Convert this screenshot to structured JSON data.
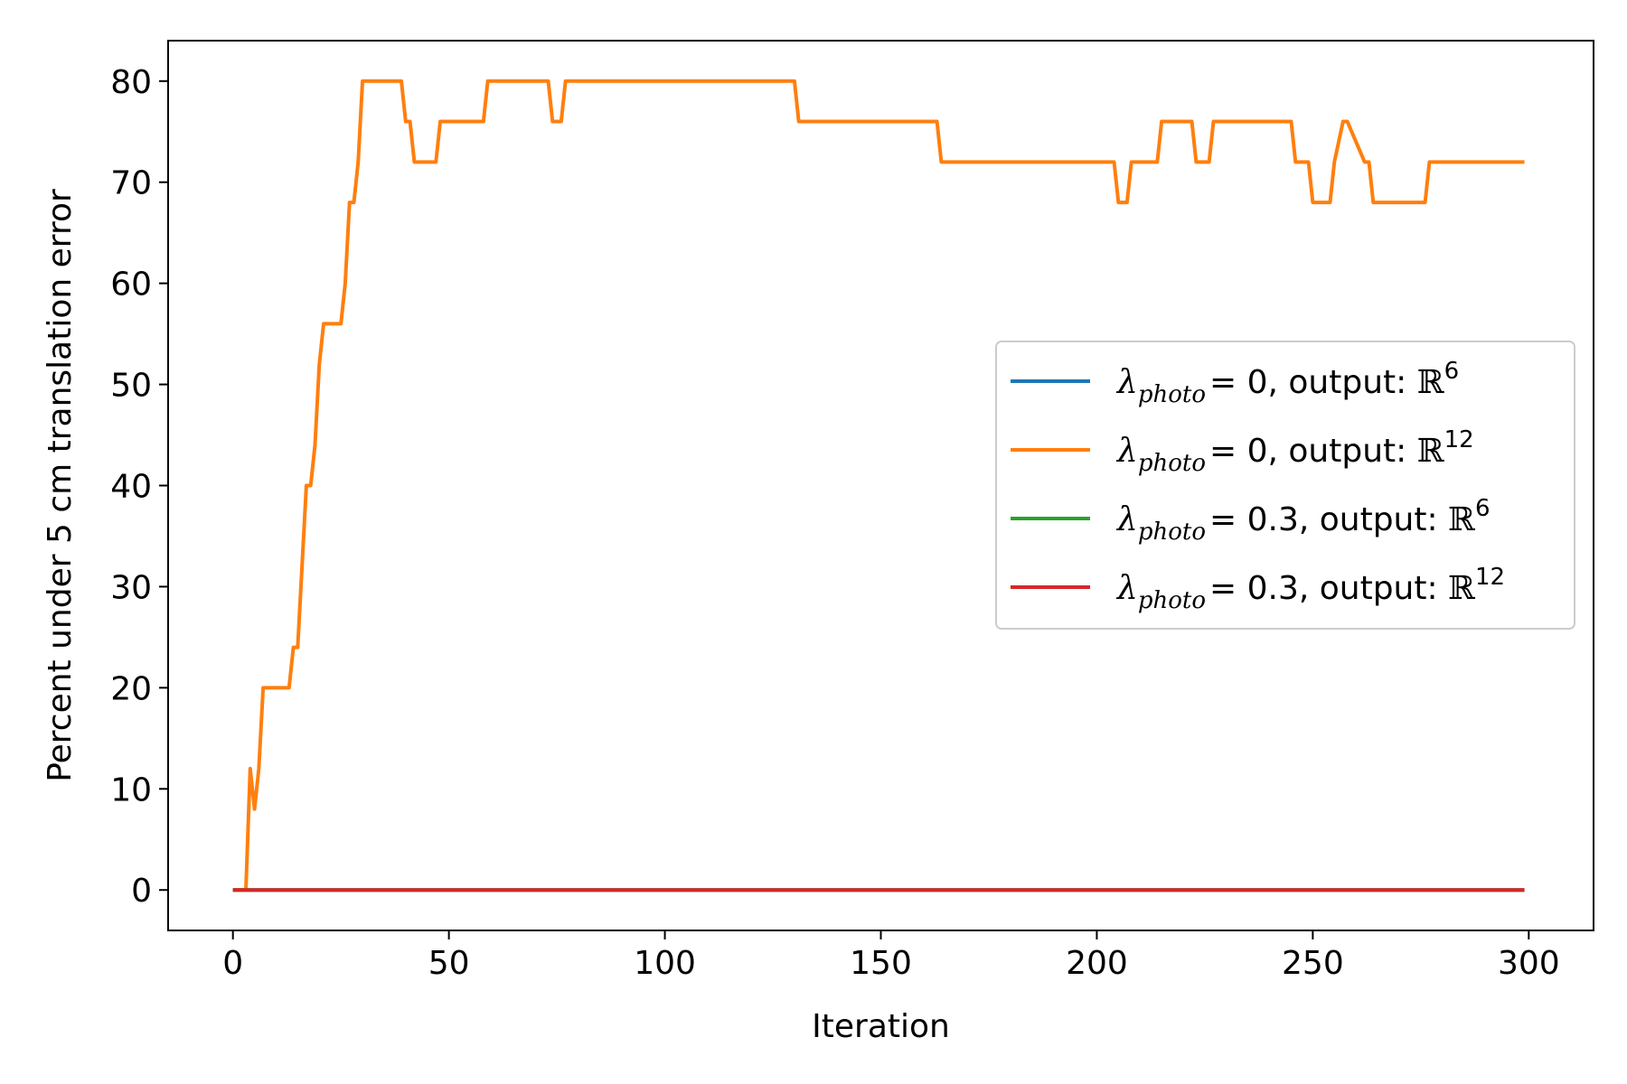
{
  "chart_data": {
    "type": "line",
    "xlabel": "Iteration",
    "ylabel": "Percent under 5 cm translation error",
    "xlim": [
      -15,
      315
    ],
    "ylim": [
      -4,
      84
    ],
    "xticks": [
      0,
      50,
      100,
      150,
      200,
      250,
      300
    ],
    "yticks": [
      0,
      10,
      20,
      30,
      40,
      50,
      60,
      70,
      80
    ],
    "grid": false,
    "legend_position": "center-right",
    "series": [
      {
        "name": "λphoto = 0, output: ℝ6",
        "legend": {
          "symbol": "λ",
          "sub": "photo",
          "value": "= 0, output: ",
          "space": "ℝ",
          "power": "6"
        },
        "color": "#1f77b4",
        "x": [
          0,
          299
        ],
        "y": [
          0,
          0
        ]
      },
      {
        "name": "λphoto = 0, output: ℝ12",
        "legend": {
          "symbol": "λ",
          "sub": "photo",
          "value": "= 0, output: ",
          "space": "ℝ",
          "power": "12"
        },
        "color": "#ff7f0e",
        "x": [
          0,
          3,
          4,
          5,
          6,
          7,
          8,
          13,
          14,
          15,
          16,
          17,
          18,
          19,
          20,
          21,
          22,
          25,
          26,
          27,
          28,
          29,
          30,
          39,
          40,
          41,
          42,
          47,
          48,
          58,
          59,
          73,
          74,
          76,
          77,
          130,
          131,
          163,
          164,
          204,
          205,
          207,
          208,
          214,
          215,
          222,
          223,
          226,
          227,
          245,
          246,
          249,
          250,
          254,
          255,
          257,
          258,
          262,
          263,
          264,
          276,
          277,
          299
        ],
        "y": [
          0,
          0,
          12,
          8,
          12,
          20,
          20,
          20,
          24,
          24,
          32,
          40,
          40,
          44,
          52,
          56,
          56,
          56,
          60,
          68,
          68,
          72,
          80,
          80,
          76,
          76,
          72,
          72,
          76,
          76,
          80,
          80,
          76,
          76,
          80,
          80,
          76,
          76,
          72,
          72,
          68,
          68,
          72,
          72,
          76,
          76,
          72,
          72,
          76,
          76,
          72,
          72,
          68,
          68,
          72,
          76,
          76,
          72,
          72,
          68,
          68,
          72,
          72
        ]
      },
      {
        "name": "λphoto = 0.3, output: ℝ6",
        "legend": {
          "symbol": "λ",
          "sub": "photo",
          "value": "= 0.3, output: ",
          "space": "ℝ",
          "power": "6"
        },
        "color": "#2ca02c",
        "x": [
          0,
          299
        ],
        "y": [
          0,
          0
        ]
      },
      {
        "name": "λphoto = 0.3, output: ℝ12",
        "legend": {
          "symbol": "λ",
          "sub": "photo",
          "value": "= 0.3, output: ",
          "space": "ℝ",
          "power": "12"
        },
        "color": "#d62728",
        "x": [
          0,
          299
        ],
        "y": [
          0,
          0
        ]
      }
    ]
  }
}
